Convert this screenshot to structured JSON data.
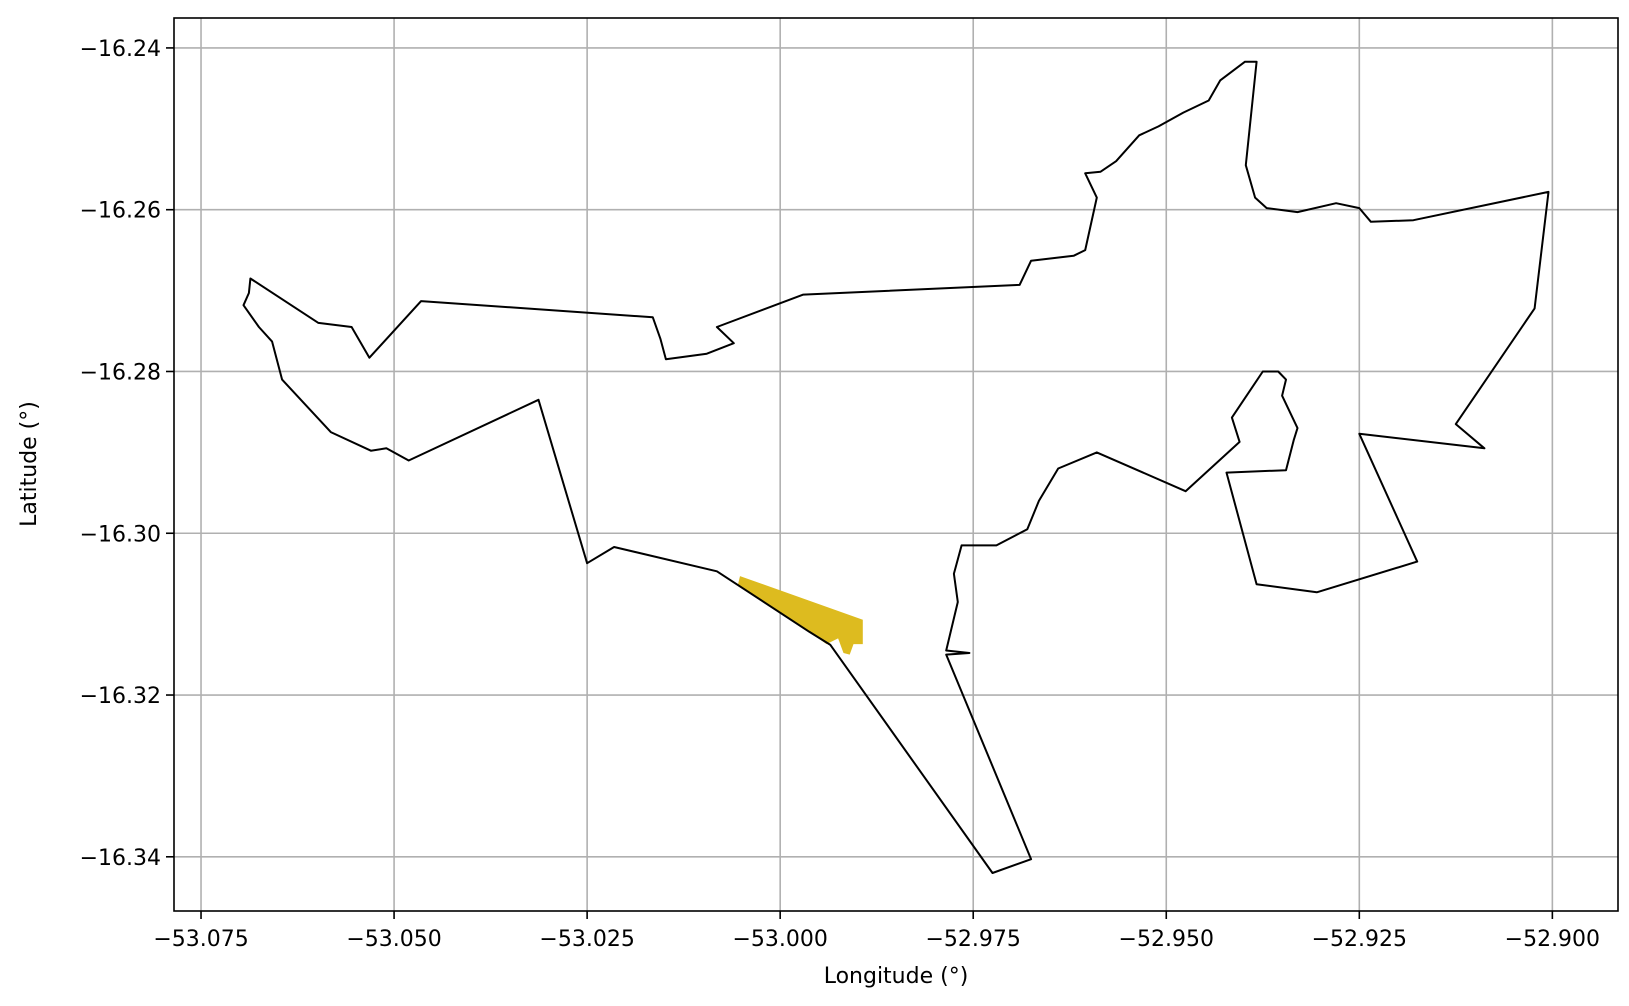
{
  "chart_data": {
    "type": "map",
    "xlabel": "Longitude (°)",
    "ylabel": "Latitude (°)",
    "xlim": [
      -53.0785,
      -52.8915
    ],
    "ylim": [
      -16.3467,
      -16.2363
    ],
    "xticks": [
      -53.075,
      -53.05,
      -53.025,
      -53.0,
      -52.975,
      -52.95,
      -52.925,
      -52.9
    ],
    "xtick_labels": [
      "−53.075",
      "−53.050",
      "−53.025",
      "−53.000",
      "−52.975",
      "−52.950",
      "−52.925",
      "−52.900"
    ],
    "yticks": [
      -16.24,
      -16.26,
      -16.28,
      -16.3,
      -16.32,
      -16.34
    ],
    "ytick_labels": [
      "−16.24",
      "−16.26",
      "−16.28",
      "−16.30",
      "−16.32",
      "−16.34"
    ],
    "grid": true,
    "boundary_color": "#000000",
    "highlight_color": "#ddbb1f",
    "boundary": [
      [
        -53.0695,
        -16.2718
      ],
      [
        -53.0688,
        -16.2703
      ],
      [
        -53.0686,
        -16.2685
      ],
      [
        -53.0598,
        -16.274
      ],
      [
        -53.0555,
        -16.2745
      ],
      [
        -53.0532,
        -16.2783
      ],
      [
        -53.0465,
        -16.2713
      ],
      [
        -53.0165,
        -16.2733
      ],
      [
        -53.0155,
        -16.276
      ],
      [
        -53.0148,
        -16.2785
      ],
      [
        -53.0095,
        -16.2778
      ],
      [
        -53.006,
        -16.2765
      ],
      [
        -53.0082,
        -16.2745
      ],
      [
        -52.997,
        -16.2705
      ],
      [
        -52.969,
        -16.2693
      ],
      [
        -52.9675,
        -16.2663
      ],
      [
        -52.962,
        -16.2657
      ],
      [
        -52.9605,
        -16.265
      ],
      [
        -52.959,
        -16.2585
      ],
      [
        -52.9605,
        -16.2555
      ],
      [
        -52.9585,
        -16.2553
      ],
      [
        -52.9565,
        -16.254
      ],
      [
        -52.9535,
        -16.2508
      ],
      [
        -52.951,
        -16.2497
      ],
      [
        -52.9478,
        -16.248
      ],
      [
        -52.9445,
        -16.2465
      ],
      [
        -52.943,
        -16.244
      ],
      [
        -52.9398,
        -16.2417
      ],
      [
        -52.9383,
        -16.2417
      ],
      [
        -52.9397,
        -16.2545
      ],
      [
        -52.9385,
        -16.2585
      ],
      [
        -52.937,
        -16.2598
      ],
      [
        -52.933,
        -16.2603
      ],
      [
        -52.928,
        -16.2592
      ],
      [
        -52.925,
        -16.2598
      ],
      [
        -52.9235,
        -16.2615
      ],
      [
        -52.918,
        -16.2613
      ],
      [
        -52.9005,
        -16.2578
      ],
      [
        -52.9023,
        -16.2722
      ],
      [
        -52.9125,
        -16.2865
      ],
      [
        -52.9088,
        -16.2895
      ],
      [
        -52.925,
        -16.2877
      ],
      [
        -52.9175,
        -16.3035
      ],
      [
        -52.9305,
        -16.3073
      ],
      [
        -52.9383,
        -16.3063
      ],
      [
        -52.9422,
        -16.2925
      ],
      [
        -52.9345,
        -16.2922
      ],
      [
        -52.9335,
        -16.2885
      ],
      [
        -52.933,
        -16.287
      ],
      [
        -52.935,
        -16.283
      ],
      [
        -52.9345,
        -16.281
      ],
      [
        -52.9355,
        -16.28
      ],
      [
        -52.9375,
        -16.28
      ],
      [
        -52.9415,
        -16.2857
      ],
      [
        -52.9405,
        -16.2887
      ],
      [
        -52.9475,
        -16.2948
      ],
      [
        -52.959,
        -16.29
      ],
      [
        -52.964,
        -16.292
      ],
      [
        -52.9665,
        -16.296
      ],
      [
        -52.968,
        -16.2995
      ],
      [
        -52.972,
        -16.3015
      ],
      [
        -52.9765,
        -16.3015
      ],
      [
        -52.9775,
        -16.305
      ],
      [
        -52.977,
        -16.3085
      ],
      [
        -52.9785,
        -16.3145
      ],
      [
        -52.9755,
        -16.3148
      ],
      [
        -52.9785,
        -16.315
      ],
      [
        -52.9675,
        -16.3403
      ],
      [
        -52.9725,
        -16.342
      ],
      [
        -52.9935,
        -16.3138
      ],
      [
        -52.9962,
        -16.3122
      ],
      [
        -53.0082,
        -16.3047
      ],
      [
        -53.0215,
        -16.3017
      ],
      [
        -53.025,
        -16.3037
      ],
      [
        -53.0313,
        -16.2835
      ],
      [
        -53.0481,
        -16.291
      ],
      [
        -53.051,
        -16.2895
      ],
      [
        -53.053,
        -16.2898
      ],
      [
        -53.0582,
        -16.2875
      ],
      [
        -53.0645,
        -16.281
      ],
      [
        -53.0658,
        -16.2763
      ],
      [
        -53.0675,
        -16.2745
      ],
      [
        -53.0695,
        -16.2718
      ]
    ],
    "highlight": [
      [
        -53.0052,
        -16.3053
      ],
      [
        -52.9893,
        -16.3107
      ],
      [
        -52.9893,
        -16.3137
      ],
      [
        -52.9905,
        -16.3137
      ],
      [
        -52.991,
        -16.315
      ],
      [
        -52.9918,
        -16.3148
      ],
      [
        -52.9925,
        -16.313
      ],
      [
        -52.994,
        -16.3137
      ],
      [
        -52.9965,
        -16.312
      ],
      [
        -53.002,
        -16.3085
      ],
      [
        -53.0055,
        -16.3065
      ]
    ]
  }
}
